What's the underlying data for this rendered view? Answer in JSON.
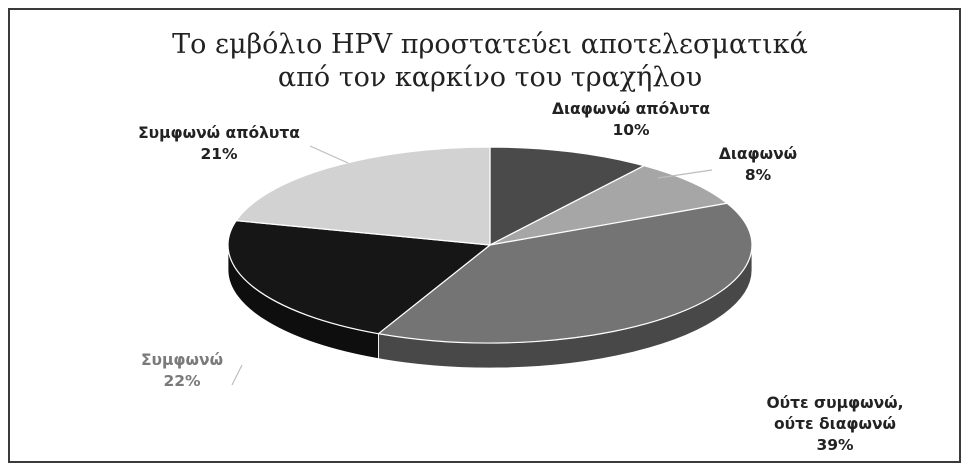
{
  "chart_data": {
    "type": "pie",
    "title": "Το εμβόλιο HPV προστατεύει αποτελεσματικά από τον καρκίνο του τραχήλου",
    "title_lines": [
      "Το εμβόλιο HPV προστατεύει αποτελεσματικά",
      "από τον καρκίνο του τραχήλου"
    ],
    "style": "3d",
    "slices": [
      {
        "name": "Διαφωνώ απόλυτα",
        "name_lines": [
          "Διαφωνώ απόλυτα"
        ],
        "value": 10,
        "value_label": "10%",
        "color": "#4a4a4a",
        "label_color": "#222222"
      },
      {
        "name": "Διαφωνώ",
        "name_lines": [
          "Διαφωνώ"
        ],
        "value": 8,
        "value_label": "8%",
        "color": "#a6a6a6",
        "label_color": "#222222"
      },
      {
        "name": "Ούτε συμφωνώ, ούτε διαφωνώ",
        "name_lines": [
          "Ούτε συμφωνώ,",
          "ούτε διαφωνώ"
        ],
        "value": 39,
        "value_label": "39%",
        "color": "#747474",
        "label_color": "#222222"
      },
      {
        "name": "Συμφωνώ",
        "name_lines": [
          "Συμφωνώ"
        ],
        "value": 22,
        "value_label": "22%",
        "color": "#161616",
        "label_color": "#7a7a7a"
      },
      {
        "name": "Συμφωνώ απόλυτα",
        "name_lines": [
          "Συμφωνώ απόλυτα"
        ],
        "value": 21,
        "value_label": "21%",
        "color": "#d2d2d2",
        "label_color": "#222222"
      }
    ]
  }
}
